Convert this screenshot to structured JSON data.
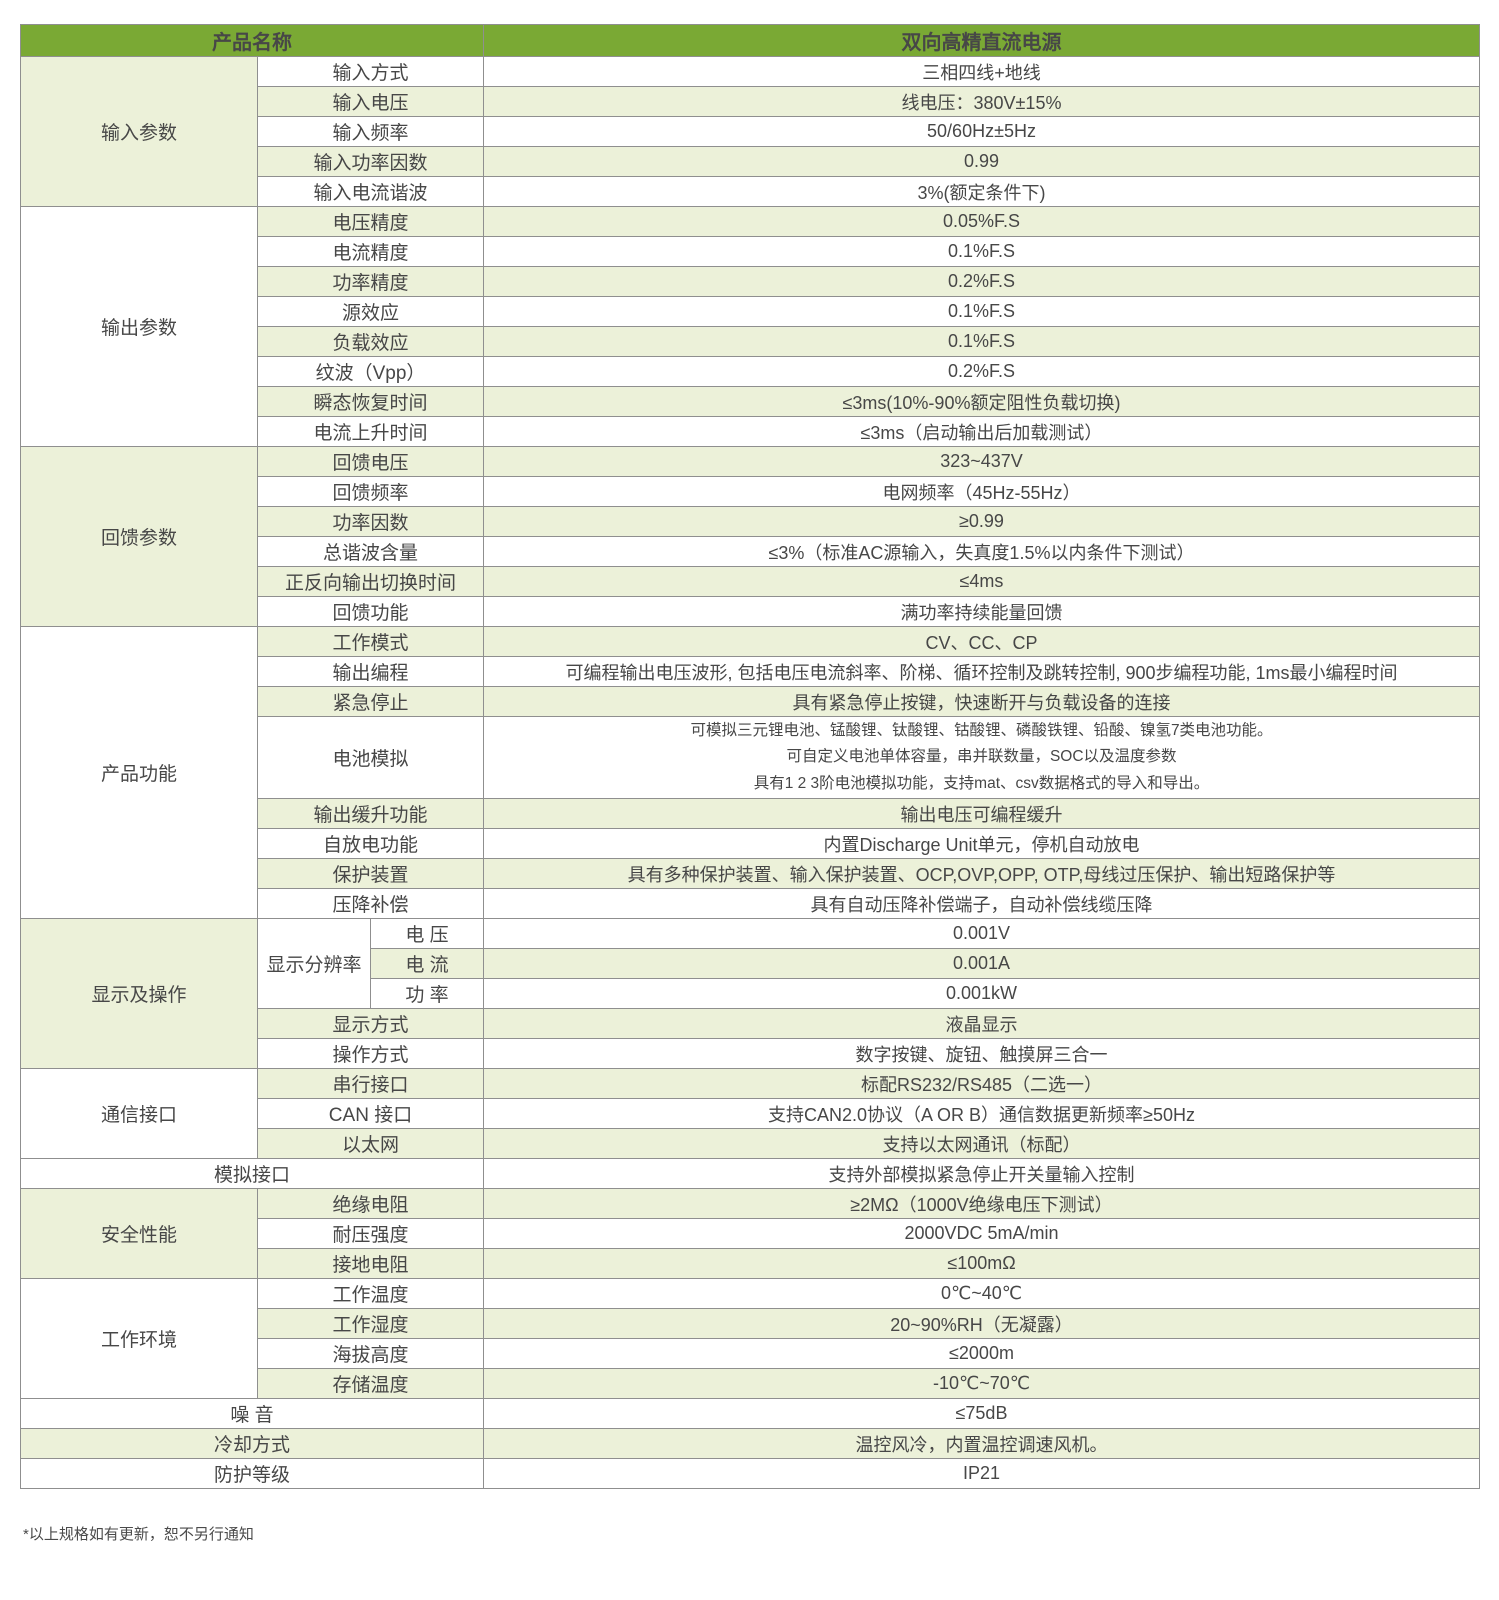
{
  "colors": {
    "header_bg": "#7aa934",
    "header_text": "#ffffff",
    "row_alt_bg": "#ecf1d9",
    "row_bg": "#ffffff",
    "grid_border": "#8f8f8f",
    "body_text": "#474747"
  },
  "footer": {
    "note": "*以上规格如有更新，恕不另行通知"
  },
  "table": {
    "rows": [
      {
        "cells": [
          {
            "text": "产品名称",
            "kind": "header",
            "colspan": 3
          },
          {
            "text": "双向高精直流电源",
            "kind": "header"
          }
        ]
      },
      {
        "cells": [
          {
            "text": "输入参数",
            "kind": "category",
            "bg": "green",
            "rowspan": 5
          },
          {
            "text": "输入方式",
            "kind": "param",
            "bg": "white",
            "colspan": 2
          },
          {
            "text": "三相四线+地线",
            "kind": "value",
            "bg": "white"
          }
        ]
      },
      {
        "cells": [
          {
            "text": "输入电压",
            "kind": "param",
            "bg": "green",
            "colspan": 2
          },
          {
            "text": "线电压：380V±15%",
            "kind": "value",
            "bg": "green"
          }
        ]
      },
      {
        "cells": [
          {
            "text": "输入频率",
            "kind": "param",
            "bg": "white",
            "colspan": 2
          },
          {
            "text": "50/60Hz±5Hz",
            "kind": "value",
            "bg": "white"
          }
        ]
      },
      {
        "cells": [
          {
            "text": "输入功率因数",
            "kind": "param",
            "bg": "green",
            "colspan": 2
          },
          {
            "text": "0.99",
            "kind": "value",
            "bg": "green"
          }
        ]
      },
      {
        "cells": [
          {
            "text": "输入电流谐波",
            "kind": "param",
            "bg": "white",
            "colspan": 2
          },
          {
            "text": "3%(额定条件下)",
            "kind": "value",
            "bg": "white"
          }
        ]
      },
      {
        "cells": [
          {
            "text": "输出参数",
            "kind": "category",
            "bg": "white",
            "rowspan": 8
          },
          {
            "text": "电压精度",
            "kind": "param",
            "bg": "green",
            "colspan": 2
          },
          {
            "text": "0.05%F.S",
            "kind": "value",
            "bg": "green"
          }
        ]
      },
      {
        "cells": [
          {
            "text": "电流精度",
            "kind": "param",
            "bg": "white",
            "colspan": 2
          },
          {
            "text": "0.1%F.S",
            "kind": "value",
            "bg": "white"
          }
        ]
      },
      {
        "cells": [
          {
            "text": "功率精度",
            "kind": "param",
            "bg": "green",
            "colspan": 2
          },
          {
            "text": "0.2%F.S",
            "kind": "value",
            "bg": "green"
          }
        ]
      },
      {
        "cells": [
          {
            "text": "源效应",
            "kind": "param",
            "bg": "white",
            "colspan": 2
          },
          {
            "text": "0.1%F.S",
            "kind": "value",
            "bg": "white"
          }
        ]
      },
      {
        "cells": [
          {
            "text": "负载效应",
            "kind": "param",
            "bg": "green",
            "colspan": 2
          },
          {
            "text": "0.1%F.S",
            "kind": "value",
            "bg": "green"
          }
        ]
      },
      {
        "cells": [
          {
            "text": "纹波（Vpp）",
            "kind": "param",
            "bg": "white",
            "colspan": 2
          },
          {
            "text": "0.2%F.S",
            "kind": "value",
            "bg": "white"
          }
        ]
      },
      {
        "cells": [
          {
            "text": "瞬态恢复时间",
            "kind": "param",
            "bg": "green",
            "colspan": 2
          },
          {
            "text": "≤3ms(10%-90%额定阻性负载切换)",
            "kind": "value",
            "bg": "green"
          }
        ]
      },
      {
        "cells": [
          {
            "text": "电流上升时间",
            "kind": "param",
            "bg": "white",
            "colspan": 2
          },
          {
            "text": "≤3ms（启动输出后加载测试）",
            "kind": "value",
            "bg": "white"
          }
        ]
      },
      {
        "cells": [
          {
            "text": "回馈参数",
            "kind": "category",
            "bg": "green",
            "rowspan": 6
          },
          {
            "text": "回馈电压",
            "kind": "param",
            "bg": "green",
            "colspan": 2
          },
          {
            "text": "323~437V",
            "kind": "value",
            "bg": "green"
          }
        ]
      },
      {
        "cells": [
          {
            "text": "回馈频率",
            "kind": "param",
            "bg": "white",
            "colspan": 2
          },
          {
            "text": "电网频率（45Hz-55Hz）",
            "kind": "value",
            "bg": "white"
          }
        ]
      },
      {
        "cells": [
          {
            "text": "功率因数",
            "kind": "param",
            "bg": "green",
            "colspan": 2
          },
          {
            "text": "≥0.99",
            "kind": "value",
            "bg": "green"
          }
        ]
      },
      {
        "cells": [
          {
            "text": "总谐波含量",
            "kind": "param",
            "bg": "white",
            "colspan": 2
          },
          {
            "text": "≤3%（标准AC源输入，失真度1.5%以内条件下测试）",
            "kind": "value",
            "bg": "white"
          }
        ]
      },
      {
        "cells": [
          {
            "text": "正反向输出切换时间",
            "kind": "param",
            "bg": "green",
            "colspan": 2
          },
          {
            "text": "≤4ms",
            "kind": "value",
            "bg": "green"
          }
        ]
      },
      {
        "cells": [
          {
            "text": "回馈功能",
            "kind": "param",
            "bg": "white",
            "colspan": 2
          },
          {
            "text": "满功率持续能量回馈",
            "kind": "value",
            "bg": "white"
          }
        ]
      },
      {
        "cells": [
          {
            "text": "产品功能",
            "kind": "category",
            "bg": "white",
            "rowspan": 8
          },
          {
            "text": "工作模式",
            "kind": "param",
            "bg": "green",
            "colspan": 2
          },
          {
            "text": "CV、CC、CP",
            "kind": "value",
            "bg": "green"
          }
        ]
      },
      {
        "cells": [
          {
            "text": "输出编程",
            "kind": "param",
            "bg": "white",
            "colspan": 2
          },
          {
            "text": "可编程输出电压波形, 包括电压电流斜率、阶梯、循环控制及跳转控制, 900步编程功能, 1ms最小编程时间",
            "kind": "value",
            "bg": "white"
          }
        ]
      },
      {
        "cells": [
          {
            "text": "紧急停止",
            "kind": "param",
            "bg": "green",
            "colspan": 2
          },
          {
            "text": "具有紧急停止按键，快速断开与负载设备的连接",
            "kind": "value",
            "bg": "green"
          }
        ]
      },
      {
        "cells": [
          {
            "text": "电池模拟",
            "kind": "param",
            "bg": "white",
            "colspan": 2
          },
          {
            "text": "可模拟三元锂电池、锰酸锂、钛酸锂、钴酸锂、磷酸铁锂、铅酸、镍氢7类电池功能。\n可自定义电池单体容量，串并联数量，SOC以及温度参数\n具有1 2 3阶电池模拟功能，支持mat、csv数据格式的导入和导出。",
            "kind": "value",
            "bg": "white"
          }
        ]
      },
      {
        "cells": [
          {
            "text": "输出缓升功能",
            "kind": "param",
            "bg": "green",
            "colspan": 2
          },
          {
            "text": "输出电压可编程缓升",
            "kind": "value",
            "bg": "green"
          }
        ]
      },
      {
        "cells": [
          {
            "text": "自放电功能",
            "kind": "param",
            "bg": "white",
            "colspan": 2
          },
          {
            "text": "内置Discharge Unit单元，停机自动放电",
            "kind": "value",
            "bg": "white"
          }
        ]
      },
      {
        "cells": [
          {
            "text": "保护装置",
            "kind": "param",
            "bg": "green",
            "colspan": 2
          },
          {
            "text": "具有多种保护装置、输入保护装置、OCP,OVP,OPP, OTP,母线过压保护、输出短路保护等",
            "kind": "value",
            "bg": "green"
          }
        ]
      },
      {
        "cells": [
          {
            "text": "压降补偿",
            "kind": "param",
            "bg": "white",
            "colspan": 2
          },
          {
            "text": "具有自动压降补偿端子，自动补偿线缆压降",
            "kind": "value",
            "bg": "white"
          }
        ]
      },
      {
        "cells": [
          {
            "text": "显示及操作",
            "kind": "category",
            "bg": "green",
            "rowspan": 5
          },
          {
            "text": "显示分辨率",
            "kind": "param",
            "bg": "white",
            "rowspan": 3
          },
          {
            "text": "电 压",
            "kind": "subparam",
            "bg": "white"
          },
          {
            "text": "0.001V",
            "kind": "value",
            "bg": "white"
          }
        ]
      },
      {
        "cells": [
          {
            "text": "电 流",
            "kind": "subparam",
            "bg": "green"
          },
          {
            "text": "0.001A",
            "kind": "value",
            "bg": "green"
          }
        ]
      },
      {
        "cells": [
          {
            "text": "功 率",
            "kind": "subparam",
            "bg": "white"
          },
          {
            "text": "0.001kW",
            "kind": "value",
            "bg": "white"
          }
        ]
      },
      {
        "cells": [
          {
            "text": "显示方式",
            "kind": "param",
            "bg": "green",
            "colspan": 2
          },
          {
            "text": "液晶显示",
            "kind": "value",
            "bg": "green"
          }
        ]
      },
      {
        "cells": [
          {
            "text": "操作方式",
            "kind": "param",
            "bg": "white",
            "colspan": 2
          },
          {
            "text": "数字按键、旋钮、触摸屏三合一",
            "kind": "value",
            "bg": "white"
          }
        ]
      },
      {
        "cells": [
          {
            "text": "通信接口",
            "kind": "category",
            "bg": "white",
            "rowspan": 3
          },
          {
            "text": "串行接口",
            "kind": "param",
            "bg": "green",
            "colspan": 2
          },
          {
            "text": "标配RS232/RS485（二选一）",
            "kind": "value",
            "bg": "green"
          }
        ]
      },
      {
        "cells": [
          {
            "text": "CAN 接口",
            "kind": "param",
            "bg": "white",
            "colspan": 2
          },
          {
            "text": "支持CAN2.0协议（A OR B）通信数据更新频率≥50Hz",
            "kind": "value",
            "bg": "white"
          }
        ]
      },
      {
        "cells": [
          {
            "text": "以太网",
            "kind": "param",
            "bg": "green",
            "colspan": 2
          },
          {
            "text": "支持以太网通讯（标配）",
            "kind": "value",
            "bg": "green"
          }
        ]
      },
      {
        "cells": [
          {
            "text": "模拟接口",
            "kind": "param",
            "bg": "white",
            "colspan": 3
          },
          {
            "text": "支持外部模拟紧急停止开关量输入控制",
            "kind": "value",
            "bg": "white"
          }
        ]
      },
      {
        "cells": [
          {
            "text": "安全性能",
            "kind": "category",
            "bg": "green",
            "rowspan": 3
          },
          {
            "text": "绝缘电阻",
            "kind": "param",
            "bg": "green",
            "colspan": 2
          },
          {
            "text": "≥2MΩ（1000V绝缘电压下测试）",
            "kind": "value",
            "bg": "green"
          }
        ]
      },
      {
        "cells": [
          {
            "text": "耐压强度",
            "kind": "param",
            "bg": "white",
            "colspan": 2
          },
          {
            "text": "2000VDC 5mA/min",
            "kind": "value",
            "bg": "white"
          }
        ]
      },
      {
        "cells": [
          {
            "text": "接地电阻",
            "kind": "param",
            "bg": "green",
            "colspan": 2
          },
          {
            "text": "≤100mΩ",
            "kind": "value",
            "bg": "green"
          }
        ]
      },
      {
        "cells": [
          {
            "text": "工作环境",
            "kind": "category",
            "bg": "white",
            "rowspan": 4
          },
          {
            "text": "工作温度",
            "kind": "param",
            "bg": "white",
            "colspan": 2
          },
          {
            "text": "0℃~40℃",
            "kind": "value",
            "bg": "white"
          }
        ]
      },
      {
        "cells": [
          {
            "text": "工作湿度",
            "kind": "param",
            "bg": "green",
            "colspan": 2
          },
          {
            "text": "20~90%RH（无凝露）",
            "kind": "value",
            "bg": "green"
          }
        ]
      },
      {
        "cells": [
          {
            "text": "海拔高度",
            "kind": "param",
            "bg": "white",
            "colspan": 2
          },
          {
            "text": "≤2000m",
            "kind": "value",
            "bg": "white"
          }
        ]
      },
      {
        "cells": [
          {
            "text": "存储温度",
            "kind": "param",
            "bg": "green",
            "colspan": 2
          },
          {
            "text": "-10℃~70℃",
            "kind": "value",
            "bg": "green"
          }
        ]
      },
      {
        "cells": [
          {
            "text": "噪 音",
            "kind": "param",
            "bg": "white",
            "colspan": 3
          },
          {
            "text": "≤75dB",
            "kind": "value",
            "bg": "white"
          }
        ]
      },
      {
        "cells": [
          {
            "text": "冷却方式",
            "kind": "param",
            "bg": "green",
            "colspan": 3
          },
          {
            "text": "温控风冷，内置温控调速风机。",
            "kind": "value",
            "bg": "green"
          }
        ]
      },
      {
        "cells": [
          {
            "text": "防护等级",
            "kind": "param",
            "bg": "white",
            "colspan": 3
          },
          {
            "text": "IP21",
            "kind": "value",
            "bg": "white"
          }
        ]
      }
    ]
  }
}
